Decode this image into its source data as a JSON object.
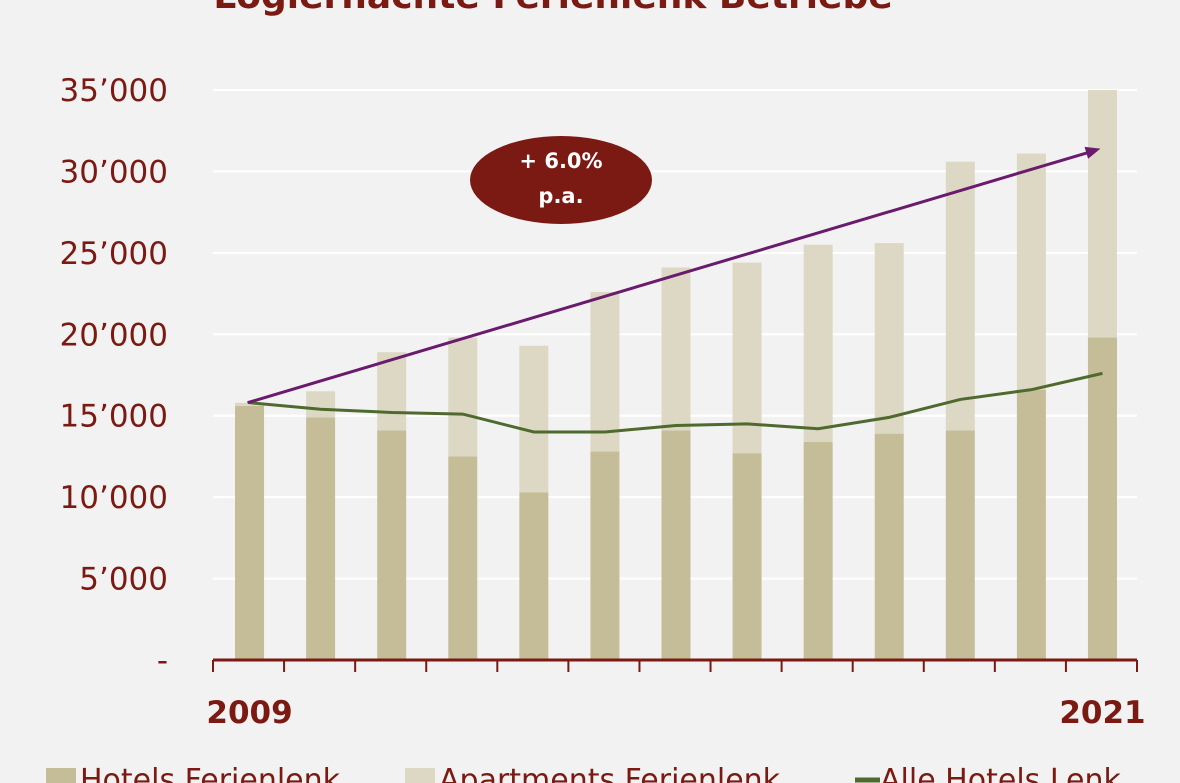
{
  "chart_data": {
    "type": "bar",
    "title": "Logiernächte Ferienlenk Betriebe",
    "categories": [
      "2009",
      "2010",
      "2011",
      "2012",
      "2013",
      "2014",
      "2015",
      "2016",
      "2017",
      "2018",
      "2019",
      "2020",
      "2021"
    ],
    "x_tick_labels": [
      "2009",
      "2021"
    ],
    "stacked": true,
    "series": [
      {
        "name": "Hotels Ferienlenk",
        "type": "bar",
        "color": "#c5bd97",
        "values": [
          15600,
          14900,
          14100,
          12500,
          10300,
          12800,
          14100,
          12700,
          13400,
          13900,
          14100,
          16600,
          19800
        ]
      },
      {
        "name": "Apartments Ferienlenk",
        "type": "bar",
        "color": "#ddd8c3",
        "values": [
          200,
          1600,
          4800,
          7300,
          9000,
          9800,
          10000,
          11700,
          12100,
          11700,
          16500,
          14500,
          15200
        ]
      },
      {
        "name": "Alle Hotels Lenk",
        "type": "line",
        "color": "#4e6a2e",
        "values": [
          15800,
          15400,
          15200,
          15100,
          14000,
          14000,
          14400,
          14500,
          14200,
          14900,
          16000,
          16600,
          17600
        ]
      }
    ],
    "ylim": [
      0,
      35000
    ],
    "y_ticks": [
      0,
      5000,
      10000,
      15000,
      20000,
      25000,
      30000,
      35000
    ],
    "y_tick_labels": [
      "-",
      "5’000",
      "10’000",
      "15’000",
      "20’000",
      "25’000",
      "30’000",
      "35’000"
    ],
    "grid": true,
    "legend_position": "bottom",
    "annotation": {
      "text_line1": "+ 6.0%",
      "text_line2": "p.a.",
      "color": "#7b1a13"
    },
    "trend_arrow": {
      "from": [
        "2009",
        15800
      ],
      "to": [
        "2021",
        31400
      ],
      "color": "#6a1b6e"
    },
    "axis_color": "#7b1a13"
  }
}
